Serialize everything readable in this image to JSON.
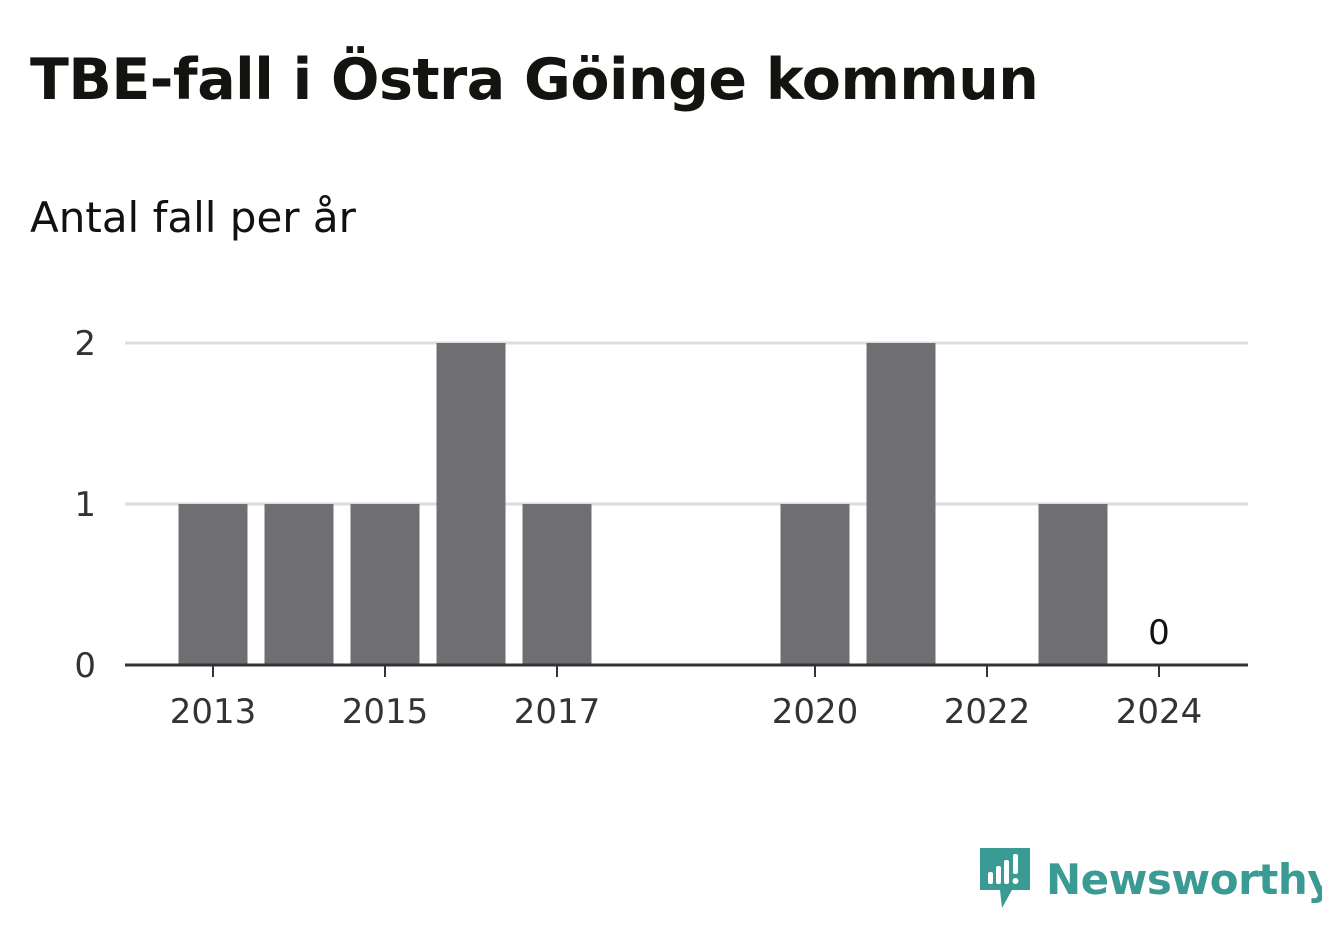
{
  "title": "TBE-fall i Östra Göinge kommun",
  "subtitle": "Antal fall per år",
  "brand": {
    "name": "Newsworthy",
    "color": "#3a9a94",
    "icon": "newsworthy-logo-icon"
  },
  "colors": {
    "bar": "#6f6e73",
    "grid": "#dddddd",
    "axis": "#333333"
  },
  "chart_data": {
    "type": "bar",
    "categories": [
      "2013",
      "2014",
      "2015",
      "2016",
      "2017",
      "2018",
      "2019",
      "2020",
      "2021",
      "2022",
      "2023",
      "2024"
    ],
    "values": [
      1,
      1,
      1,
      2,
      1,
      null,
      null,
      1,
      2,
      null,
      1,
      0
    ],
    "x_tick_labels": [
      "2013",
      "2015",
      "2017",
      "2020",
      "2022",
      "2024"
    ],
    "y_ticks": [
      0,
      1,
      2
    ],
    "ylim": [
      0,
      2
    ],
    "grid": true,
    "data_labels": [
      {
        "category": "2024",
        "text": "0"
      }
    ],
    "title": "TBE-fall i Östra Göinge kommun",
    "ylabel": "Antal fall per år",
    "xlabel": ""
  }
}
